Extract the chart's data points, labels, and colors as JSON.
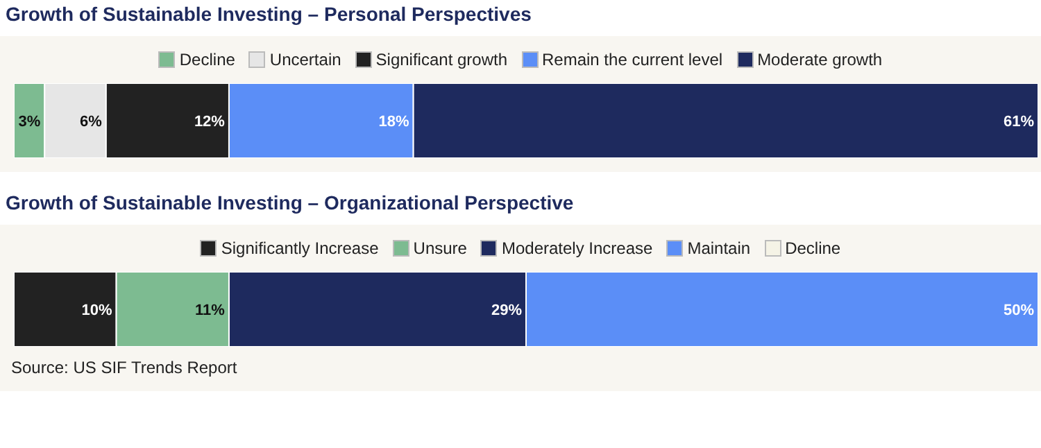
{
  "chart_data": [
    {
      "type": "bar",
      "orientation": "horizontal",
      "stacked": true,
      "title": "Growth of Sustainable Investing – Personal Perspectives",
      "categories": [
        null
      ],
      "xlim": [
        0,
        100
      ],
      "legend": "top",
      "series": [
        {
          "name": "Decline",
          "color": "#7dbb91",
          "values": [
            3
          ],
          "value_labels": [
            "3%"
          ]
        },
        {
          "name": "Uncertain",
          "color": "#e6e6e6",
          "values": [
            6
          ],
          "value_labels": [
            "6%"
          ]
        },
        {
          "name": "Significant growth",
          "color": "#222222",
          "values": [
            12
          ],
          "value_labels": [
            "12%"
          ]
        },
        {
          "name": "Remain the current level",
          "color": "#5b8ef7",
          "values": [
            18
          ],
          "value_labels": [
            "18%"
          ]
        },
        {
          "name": "Moderate growth",
          "color": "#1e2a5e",
          "values": [
            61
          ],
          "value_labels": [
            "61%"
          ]
        }
      ]
    },
    {
      "type": "bar",
      "orientation": "horizontal",
      "stacked": true,
      "title": "Growth of Sustainable Investing – Organizational Perspective",
      "categories": [
        null
      ],
      "xlim": [
        0,
        100
      ],
      "legend": "top",
      "annotations": [
        "Source: US SIF Trends Report"
      ],
      "series": [
        {
          "name": "Significantly Increase",
          "color": "#222222",
          "values": [
            10
          ],
          "value_labels": [
            "10%"
          ]
        },
        {
          "name": "Unsure",
          "color": "#7dbb91",
          "values": [
            11
          ],
          "value_labels": [
            "11%"
          ]
        },
        {
          "name": "Moderately Increase",
          "color": "#1e2a5e",
          "values": [
            29
          ],
          "value_labels": [
            "29%"
          ]
        },
        {
          "name": "Maintain",
          "color": "#5b8ef7",
          "values": [
            50
          ],
          "value_labels": [
            "50%"
          ]
        },
        {
          "name": "Decline",
          "color": "#f5f3e6",
          "values": [
            0
          ],
          "value_labels": [
            null
          ]
        }
      ]
    }
  ]
}
